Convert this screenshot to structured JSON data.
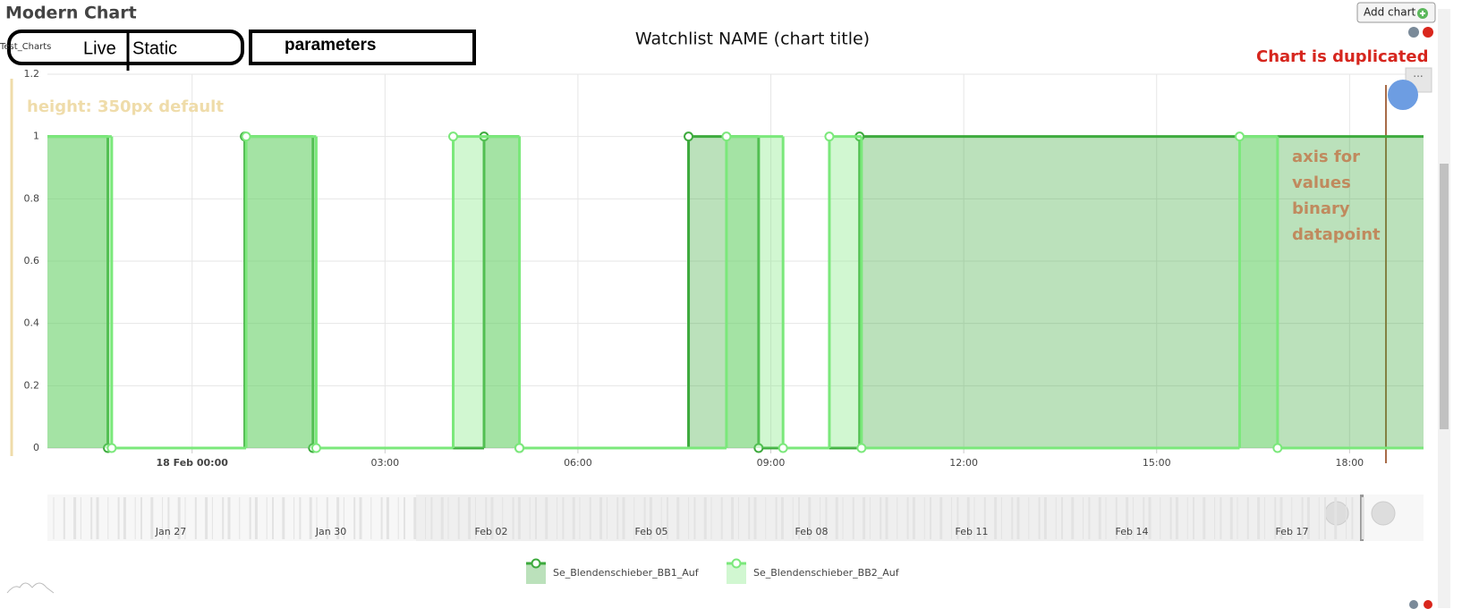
{
  "page": {
    "title": "Modern Chart",
    "add_button": "Add chart",
    "watchlist": "Test_Charts",
    "live": "Live",
    "static": "Static",
    "parameters": "parameters",
    "menu_button": "···"
  },
  "chart_data": {
    "type": "area",
    "step": true,
    "title": "Watchlist NAME (chart title)",
    "xlim": [
      -2.25,
      19.15
    ],
    "xticks": [
      {
        "value": 0,
        "label": "18 Feb 00:00"
      },
      {
        "value": 3,
        "label": "03:00"
      },
      {
        "value": 6,
        "label": "06:00"
      },
      {
        "value": 9,
        "label": "09:00"
      },
      {
        "value": 12,
        "label": "12:00"
      },
      {
        "value": 15,
        "label": "15:00"
      },
      {
        "value": 18,
        "label": "18:00"
      }
    ],
    "ylim": [
      0,
      1.2
    ],
    "yticks": [
      0,
      0.2,
      0.4,
      0.6,
      0.8,
      1,
      1.2
    ],
    "grid": true,
    "series": [
      {
        "name": "Se_Blendenschieber_BB1_Auf",
        "color": "#3daa3d",
        "x": [
          -2.25,
          -1.31,
          0.82,
          1.88,
          4.54,
          5.09,
          7.72,
          8.81,
          10.38,
          19.15
        ],
        "values": [
          1,
          0,
          1,
          0,
          1,
          0,
          1,
          0,
          1,
          1
        ]
      },
      {
        "name": "Se_Blendenschieber_BB2_Auf",
        "color": "#7be87b",
        "x": [
          -2.25,
          -1.25,
          0.84,
          1.93,
          4.06,
          5.09,
          8.31,
          9.19,
          9.91,
          10.41,
          16.29,
          16.88,
          19.15
        ],
        "values": [
          1,
          0,
          1,
          0,
          1,
          0,
          1,
          0,
          1,
          0,
          1,
          0,
          0
        ]
      }
    ],
    "navigator_labels": [
      "Jan 27",
      "Jan 30",
      "Feb 02",
      "Feb 05",
      "Feb 08",
      "Feb 11",
      "Feb 14",
      "Feb 17"
    ],
    "annotations": {
      "duplicated": "Chart is duplicated",
      "height": "height: 350px default",
      "axis_note": [
        "axis for",
        "values",
        "binary",
        "datapoint"
      ]
    }
  }
}
